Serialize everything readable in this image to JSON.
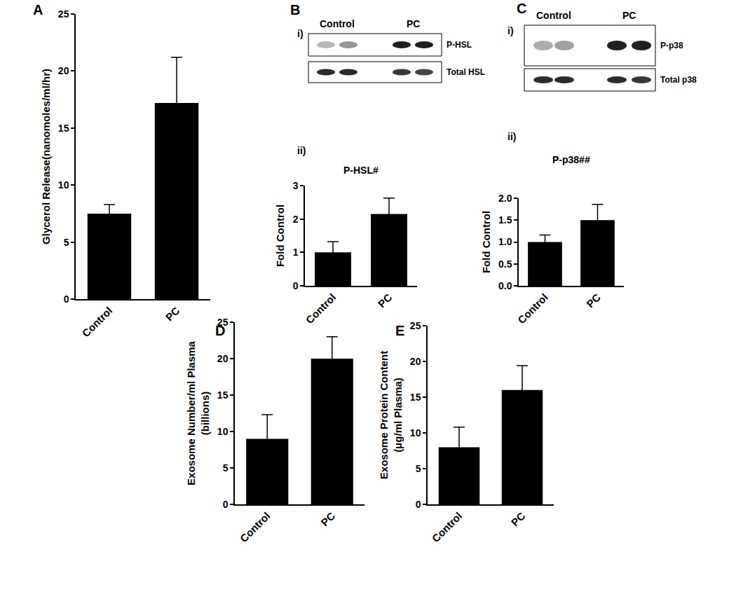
{
  "chart_data": [
    {
      "type": "bar",
      "annotations": [
        "A"
      ],
      "categories": [
        "Control",
        "PC"
      ],
      "values": [
        7.5,
        17.2
      ],
      "errors": [
        0.8,
        4.0
      ],
      "color": "#000000",
      "ylabel": "Glycerol Release(nanomoles/ml/hr)",
      "ylim": [
        0,
        25
      ],
      "yticks": [
        0,
        5,
        10,
        15,
        20,
        25
      ],
      "grid": false
    },
    {
      "type": "bar",
      "title": "P-HSL#",
      "annotations": [
        "ii)"
      ],
      "categories": [
        "Control",
        "PC"
      ],
      "values": [
        1.0,
        2.15
      ],
      "errors": [
        0.32,
        0.48
      ],
      "color": "#000000",
      "ylabel": "Fold Control",
      "ylim": [
        0,
        3
      ],
      "yticks": [
        0,
        1,
        2,
        3
      ],
      "grid": false
    },
    {
      "type": "bar",
      "title": "P-p38##",
      "annotations": [
        "ii)"
      ],
      "categories": [
        "Control",
        "PC"
      ],
      "values": [
        1.0,
        1.5
      ],
      "errors": [
        0.16,
        0.36
      ],
      "color": "#000000",
      "ylabel": "Fold Control",
      "ylim": [
        0,
        2
      ],
      "yticks": [
        {
          "value": 0,
          "label": "0.0"
        },
        {
          "value": 0.5,
          "label": "0.5"
        },
        {
          "value": 1,
          "label": "1.0"
        },
        {
          "value": 1.5,
          "label": "1.5"
        },
        {
          "value": 2,
          "label": "2.0"
        }
      ],
      "grid": false
    },
    {
      "type": "bar",
      "annotations": [
        "D"
      ],
      "categories": [
        "Control",
        "PC"
      ],
      "values": [
        9,
        20
      ],
      "errors": [
        3.3,
        3.0
      ],
      "color": "#000000",
      "ylabel": "Exosome Number/ml Plasma\n(billions)",
      "ylim": [
        0,
        25
      ],
      "yticks": [
        0,
        5,
        10,
        15,
        20,
        25
      ],
      "grid": false
    },
    {
      "type": "bar",
      "annotations": [
        "E"
      ],
      "categories": [
        "Control",
        "PC"
      ],
      "values": [
        8,
        16
      ],
      "errors": [
        2.8,
        3.4
      ],
      "color": "#000000",
      "ylabel": "Exosome Protein Content\n(μg/ml Plasma)",
      "ylim": [
        0,
        25
      ],
      "yticks": [
        0,
        5,
        10,
        15,
        20,
        25
      ],
      "grid": false
    }
  ],
  "blots": [
    {
      "panel": "B",
      "label": "i)",
      "lanes": [
        "Control",
        "PC"
      ],
      "rows": [
        "P-HSL",
        "Total HSL"
      ]
    },
    {
      "panel": "C",
      "label": "i)",
      "lanes": [
        "Control",
        "PC"
      ],
      "rows": [
        "P-p38",
        "Total p38"
      ]
    }
  ]
}
